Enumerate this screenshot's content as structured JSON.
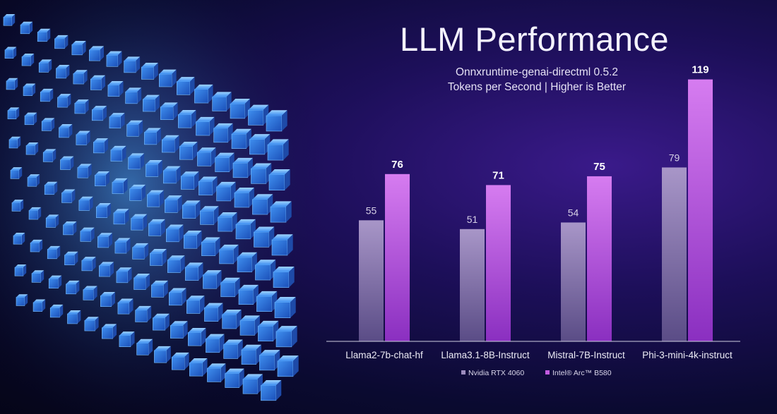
{
  "page": {
    "title": "LLM Performance",
    "subtitle_line1": "Onnxruntime-genai-directml 0.5.2",
    "subtitle_line2": "Tokens per Second | Higher is Better",
    "colors": {
      "background": "#14104a",
      "rtx_bar": "#9c8cbe",
      "arc_bar": "#c25be0",
      "axis": "#cfcfe0",
      "cube": "#4aa7ff"
    }
  },
  "chart_data": {
    "type": "bar",
    "title": "LLM Performance",
    "subtitle": "Onnxruntime-genai-directml 0.5.2 | Tokens per Second | Higher is Better",
    "categories": [
      "Llama2-7b-chat-hf",
      "Llama3.1-8B-Instruct",
      "Mistral-7B-Instruct",
      "Phi-3-mini-4k-instruct"
    ],
    "series": [
      {
        "name": "Nvidia RTX 4060",
        "values": [
          55,
          51,
          54,
          79
        ],
        "color": "#9c8cbe"
      },
      {
        "name": "Intel® Arc™ B580",
        "values": [
          76,
          71,
          75,
          119
        ],
        "color": "#c25be0"
      }
    ],
    "ylim": [
      0,
      124
    ],
    "grid": false,
    "legend": "bottom-center"
  }
}
